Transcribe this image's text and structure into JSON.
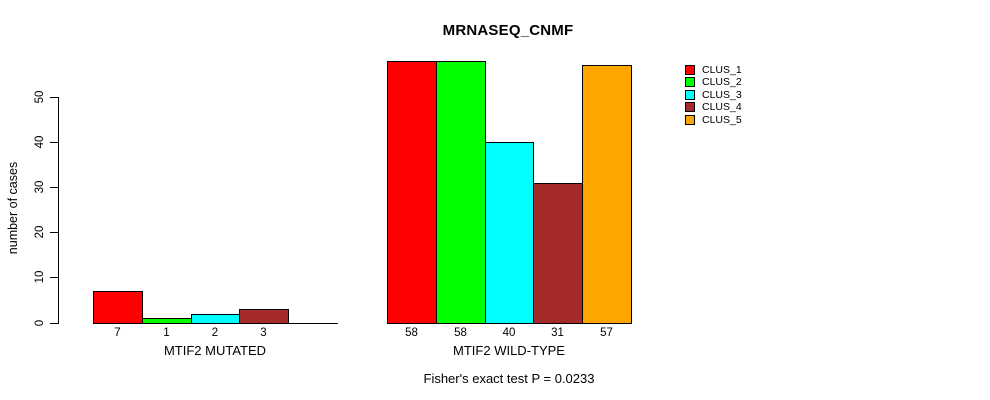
{
  "title": "MRNASEQ_CNMF",
  "y_axis": {
    "label": "number of cases",
    "ticks": [
      0,
      10,
      20,
      30,
      40,
      50
    ]
  },
  "annotation": "Fisher's exact test P = 0.0233",
  "legend": {
    "items": [
      {
        "label": "CLUS_1",
        "color": "#FF0000"
      },
      {
        "label": "CLUS_2",
        "color": "#00FF00"
      },
      {
        "label": "CLUS_3",
        "color": "#00FFFF"
      },
      {
        "label": "CLUS_4",
        "color": "#A52A2A"
      },
      {
        "label": "CLUS_5",
        "color": "#FFA500"
      }
    ]
  },
  "chart_data": {
    "type": "bar",
    "title": "MRNASEQ_CNMF",
    "xlabel": "",
    "ylabel": "number of cases",
    "ylim": [
      0,
      58
    ],
    "yticks": [
      0,
      10,
      20,
      30,
      40,
      50
    ],
    "grid": false,
    "legend_position": "right",
    "bar_value_labels": true,
    "series": [
      {
        "name": "CLUS_1",
        "color": "#FF0000"
      },
      {
        "name": "CLUS_2",
        "color": "#00FF00"
      },
      {
        "name": "CLUS_3",
        "color": "#00FFFF"
      },
      {
        "name": "CLUS_4",
        "color": "#A52A2A"
      },
      {
        "name": "CLUS_5",
        "color": "#FFA500"
      }
    ],
    "groups": [
      {
        "label": "MTIF2 MUTATED",
        "values": [
          7,
          1,
          2,
          3,
          0
        ]
      },
      {
        "label": "MTIF2 WILD-TYPE",
        "values": [
          58,
          58,
          40,
          31,
          57
        ]
      }
    ],
    "annotation": "Fisher's exact test P = 0.0233"
  }
}
